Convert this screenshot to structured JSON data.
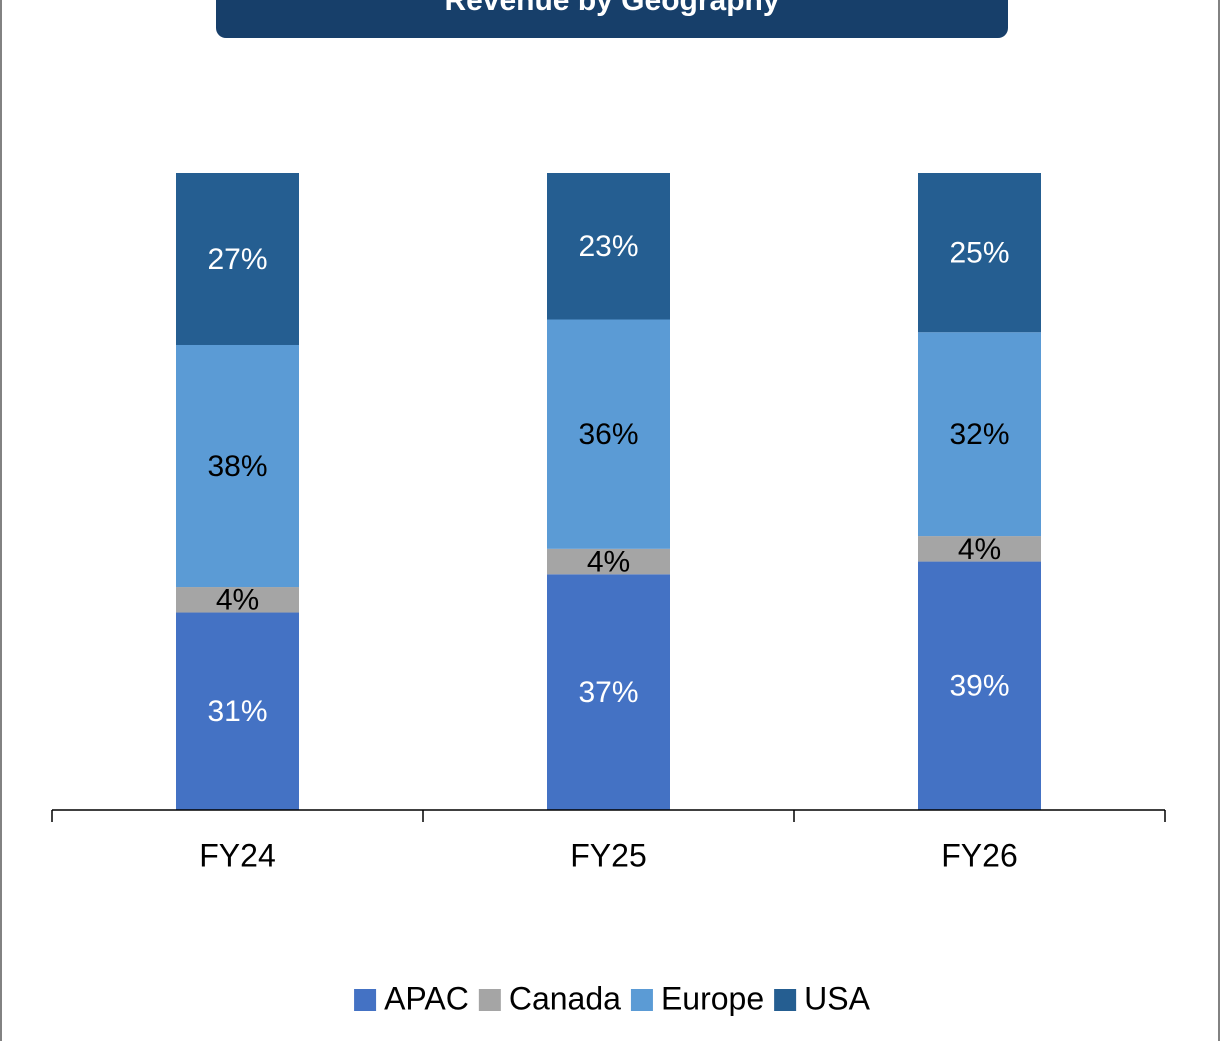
{
  "chart_data": {
    "type": "stacked_bar",
    "title": "Revenue by Geography",
    "categories": [
      "FY24",
      "FY25",
      "FY26"
    ],
    "series": [
      {
        "name": "APAC",
        "color": "#4472c4",
        "values": [
          31,
          37,
          39
        ],
        "value_labels": [
          "31%",
          "37%",
          "39%"
        ]
      },
      {
        "name": "Canada",
        "color": "#a5a5a5",
        "values": [
          4,
          4,
          4
        ],
        "value_labels": [
          "4%",
          "4%",
          "4%"
        ]
      },
      {
        "name": "Europe",
        "color": "#5b9bd5",
        "values": [
          38,
          36,
          32
        ],
        "value_labels": [
          "38%",
          "36%",
          "32%"
        ]
      },
      {
        "name": "USA",
        "color": "#255e91",
        "values": [
          27,
          23,
          25
        ],
        "value_labels": [
          "27%",
          "23%",
          "25%"
        ]
      }
    ],
    "legend": "bottom"
  }
}
